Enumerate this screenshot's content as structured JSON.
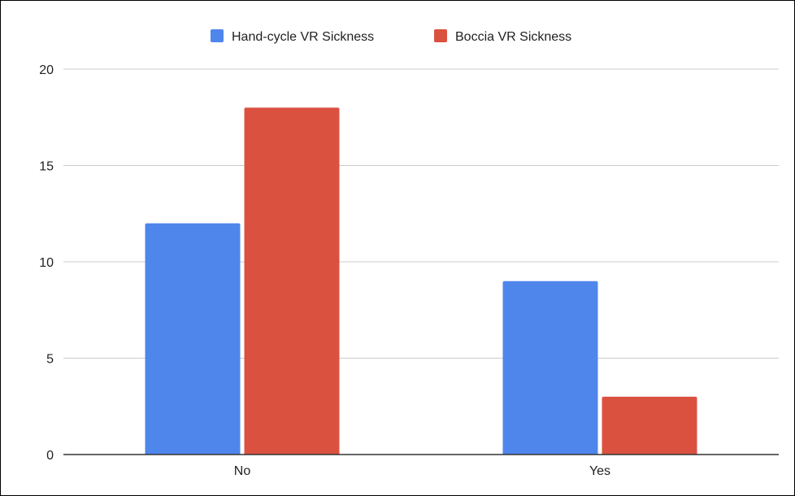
{
  "chart_data": {
    "type": "bar",
    "categories": [
      "No",
      "Yes"
    ],
    "series": [
      {
        "name": "Hand-cycle VR Sickness",
        "values": [
          12,
          9
        ],
        "color": "#4f86ec"
      },
      {
        "name": "Boccia VR Sickness",
        "values": [
          18,
          3
        ],
        "color": "#db5140"
      }
    ],
    "yticks": [
      0,
      5,
      10,
      15,
      20
    ],
    "ylim": [
      0,
      20
    ],
    "grid": true,
    "legend_position": "top-center",
    "title": "",
    "xlabel": "",
    "ylabel": ""
  }
}
